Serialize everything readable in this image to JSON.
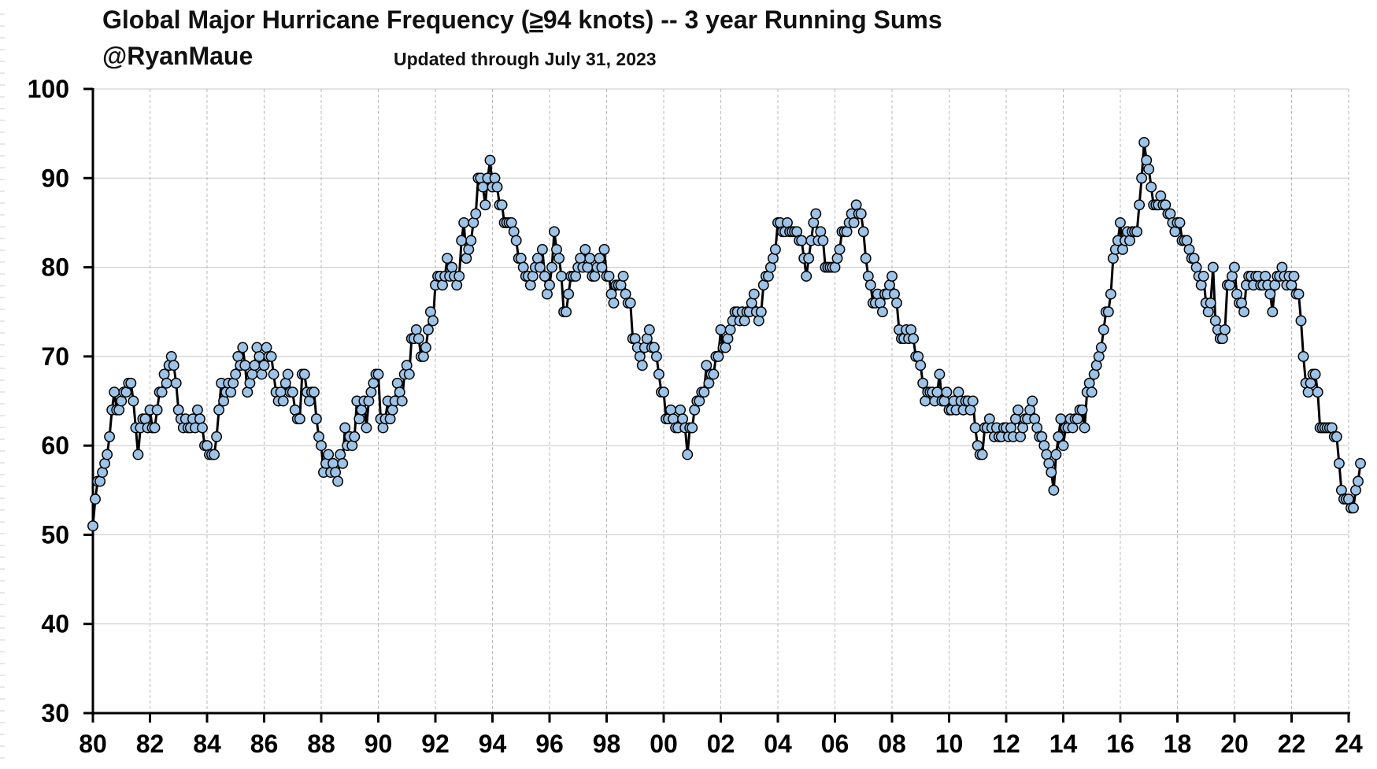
{
  "chart_data": {
    "type": "line",
    "title_parts": [
      "Global Major Hurricane Frequency (",
      "≥",
      "94 knots)  -- 3 year Running Sums"
    ],
    "handle": "@RyanMaue",
    "updated": "Updated through July 31, 2023",
    "xlabel": "",
    "ylabel": "",
    "xlim": [
      1980,
      2024
    ],
    "ylim": [
      30,
      100
    ],
    "x_ticks": [
      1980,
      1982,
      1984,
      1986,
      1988,
      1990,
      1992,
      1994,
      1996,
      1998,
      2000,
      2002,
      2004,
      2006,
      2008,
      2010,
      2012,
      2014,
      2016,
      2018,
      2020,
      2022,
      2024
    ],
    "x_tick_labels": [
      "80",
      "82",
      "84",
      "86",
      "88",
      "90",
      "92",
      "94",
      "96",
      "98",
      "00",
      "02",
      "04",
      "06",
      "08",
      "10",
      "12",
      "14",
      "16",
      "18",
      "20",
      "22",
      "24"
    ],
    "y_ticks": [
      30,
      40,
      50,
      60,
      70,
      80,
      90,
      100
    ],
    "y_tick_labels": [
      "30",
      "40",
      "50",
      "60",
      "70",
      "80",
      "90",
      "100"
    ],
    "grid": true,
    "line_color": "#000000",
    "marker_color": "#9dc3e6",
    "series": [
      {
        "name": "3-year running sum",
        "x_start": 1980.0,
        "x_step": 0.08333,
        "values": [
          51,
          54,
          56,
          56,
          57,
          58,
          59,
          61,
          64,
          66,
          64,
          64,
          65,
          66,
          66,
          67,
          67,
          65,
          62,
          59,
          62,
          63,
          63,
          62,
          64,
          62,
          62,
          64,
          66,
          66,
          68,
          67,
          69,
          70,
          69,
          67,
          64,
          63,
          62,
          63,
          62,
          62,
          63,
          62,
          64,
          63,
          62,
          60,
          60,
          59,
          59,
          59,
          61,
          64,
          67,
          65,
          66,
          67,
          66,
          67,
          68,
          70,
          69,
          71,
          69,
          66,
          67,
          68,
          69,
          71,
          70,
          68,
          69,
          71,
          70,
          70,
          68,
          66,
          65,
          66,
          65,
          67,
          68,
          66,
          66,
          64,
          63,
          63,
          68,
          68,
          66,
          65,
          66,
          66,
          63,
          61,
          60,
          57,
          58,
          59,
          57,
          58,
          57,
          56,
          59,
          58,
          62,
          60,
          61,
          60,
          61,
          65,
          63,
          64,
          65,
          62,
          65,
          66,
          67,
          68,
          68,
          63,
          62,
          63,
          65,
          63,
          64,
          65,
          67,
          66,
          65,
          68,
          69,
          68,
          72,
          72,
          73,
          72,
          70,
          70,
          71,
          73,
          75,
          74,
          78,
          79,
          79,
          78,
          79,
          81,
          79,
          80,
          79,
          78,
          79,
          83,
          85,
          81,
          82,
          83,
          85,
          86,
          90,
          90,
          89,
          87,
          90,
          92,
          89,
          90,
          89,
          87,
          87,
          85,
          85,
          85,
          85,
          84,
          83,
          81,
          81,
          80,
          79,
          79,
          78,
          79,
          80,
          81,
          80,
          82,
          79,
          77,
          78,
          80,
          84,
          82,
          81,
          79,
          75,
          75,
          77,
          79,
          79,
          79,
          80,
          81,
          80,
          82,
          80,
          81,
          79,
          79,
          80,
          81,
          80,
          82,
          79,
          79,
          77,
          76,
          78,
          78,
          78,
          79,
          77,
          76,
          76,
          72,
          72,
          71,
          70,
          69,
          71,
          72,
          73,
          71,
          71,
          70,
          68,
          66,
          66,
          63,
          63,
          64,
          63,
          62,
          62,
          64,
          63,
          62,
          59,
          62,
          62,
          64,
          65,
          65,
          66,
          66,
          69,
          67,
          68,
          68,
          70,
          70,
          73,
          71,
          71,
          72,
          73,
          74,
          75,
          75,
          74,
          75,
          74,
          75,
          75,
          76,
          77,
          75,
          74,
          75,
          78,
          79,
          79,
          80,
          81,
          82,
          85,
          85,
          84,
          84,
          85,
          84,
          84,
          84,
          84,
          83,
          83,
          81,
          79,
          81,
          83,
          85,
          86,
          83,
          84,
          83,
          80,
          80,
          80,
          80,
          80,
          81,
          82,
          84,
          84,
          84,
          85,
          86,
          85,
          87,
          86,
          86,
          84,
          81,
          79,
          78,
          76,
          76,
          77,
          76,
          75,
          77,
          77,
          78,
          79,
          77,
          76,
          73,
          72,
          72,
          73,
          72,
          73,
          72,
          70,
          70,
          69,
          67,
          65,
          66,
          66,
          66,
          65,
          66,
          68,
          65,
          65,
          66,
          64,
          64,
          65,
          64,
          66,
          65,
          64,
          65,
          65,
          64,
          65,
          62,
          60,
          59,
          59,
          62,
          62,
          63,
          62,
          61,
          62,
          61,
          61,
          62,
          62,
          61,
          62,
          61,
          63,
          64,
          61,
          62,
          63,
          63,
          64,
          65,
          63,
          62,
          61,
          61,
          60,
          59,
          58,
          57,
          55,
          59,
          61,
          63,
          60,
          62,
          62,
          63,
          62,
          63,
          63,
          64,
          64,
          62,
          66,
          67,
          66,
          68,
          69,
          70,
          71,
          73,
          75,
          75,
          77,
          81,
          82,
          83,
          85,
          82,
          83,
          84,
          83,
          84,
          84,
          84,
          87,
          90,
          94,
          92,
          91,
          89,
          87,
          87,
          87,
          88,
          87,
          87,
          86,
          86,
          85,
          84,
          85,
          85,
          83,
          83,
          83,
          82,
          81,
          81,
          80,
          79,
          78,
          79,
          76,
          75,
          76,
          80,
          74,
          73,
          72,
          72,
          73,
          78,
          78,
          79,
          80,
          77,
          76,
          76,
          75,
          78,
          79,
          79,
          78,
          79,
          79,
          78,
          78,
          79,
          78,
          77,
          75,
          78,
          79,
          79,
          80,
          79,
          78,
          79,
          78,
          79,
          77,
          77,
          74,
          70,
          67,
          66,
          67,
          68,
          68,
          66,
          62,
          62,
          62,
          62,
          62,
          62,
          61,
          61,
          58,
          55,
          54,
          54,
          54,
          53,
          53,
          55,
          56,
          58
        ]
      }
    ]
  }
}
